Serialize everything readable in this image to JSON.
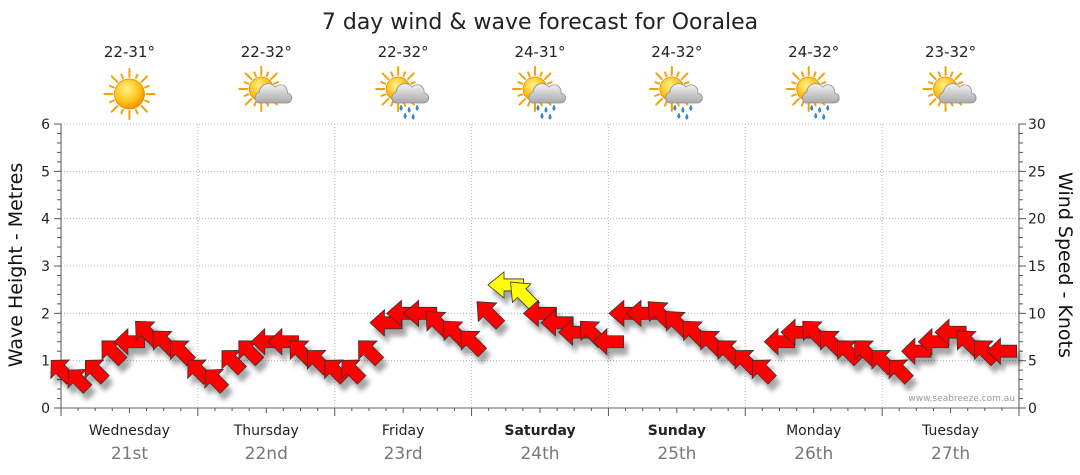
{
  "chart_data": {
    "type": "wind-arrows",
    "title": "7 day wind & wave forecast for Ooralea",
    "ylabel_left": "Wave Height - Metres",
    "ylabel_right": "Wind Speed - Knots",
    "ylim_left": [
      0,
      6
    ],
    "ylim_right": [
      0,
      30
    ],
    "yticks_left": [
      "0",
      "1",
      "2",
      "3",
      "4",
      "5",
      "6"
    ],
    "yticks_right": [
      "0",
      "5",
      "10",
      "15",
      "20",
      "25",
      "30"
    ],
    "grid": true,
    "days": [
      {
        "day": "Wednesday",
        "date": "21st",
        "temp": "22-31°",
        "weather": "sunny",
        "bold": false
      },
      {
        "day": "Thursday",
        "date": "22nd",
        "temp": "22-32°",
        "weather": "partly-cloudy",
        "bold": false
      },
      {
        "day": "Friday",
        "date": "23rd",
        "temp": "22-32°",
        "weather": "showers",
        "bold": false
      },
      {
        "day": "Saturday",
        "date": "24th",
        "temp": "24-31°",
        "weather": "showers",
        "bold": true
      },
      {
        "day": "Sunday",
        "date": "25th",
        "temp": "24-32°",
        "weather": "showers",
        "bold": true
      },
      {
        "day": "Monday",
        "date": "26th",
        "temp": "24-32°",
        "weather": "showers",
        "bold": false
      },
      {
        "day": "Tuesday",
        "date": "27th",
        "temp": "23-32°",
        "weather": "partly-cloudy",
        "bold": false
      }
    ],
    "wind_series": {
      "name": "Wind",
      "units": "knots",
      "t_hours": [
        0,
        3,
        6,
        9,
        12,
        15,
        18,
        21,
        24,
        27,
        30,
        33,
        36,
        39,
        42,
        45,
        48,
        51,
        54,
        57,
        60,
        63,
        66,
        69,
        72,
        75,
        78,
        81,
        84,
        87,
        90,
        93,
        96,
        99,
        102,
        105,
        108,
        111,
        114,
        117,
        120,
        123,
        126,
        129,
        132,
        135,
        138,
        141,
        144,
        147,
        150,
        153,
        156,
        159,
        162,
        165
      ],
      "speed": [
        4,
        3,
        4,
        6,
        7,
        8,
        7,
        6,
        4,
        3,
        5,
        6,
        7,
        7,
        6,
        5,
        4,
        4,
        6,
        9,
        10,
        10,
        9,
        8,
        7,
        10,
        13,
        12,
        10,
        9,
        8,
        8,
        7,
        10,
        10,
        10,
        9,
        8,
        7,
        6,
        5,
        4,
        7,
        8,
        8,
        7,
        6,
        6,
        5,
        4,
        6,
        7,
        8,
        7,
        6,
        6
      ],
      "direction": [
        "SE",
        "SE",
        "SE",
        "SE",
        "E",
        "SE",
        "SE",
        "SE",
        "SE",
        "SE",
        "SE",
        "SE",
        "E",
        "E",
        "SE",
        "SE",
        "SE",
        "SE",
        "SE",
        "E",
        "E",
        "E",
        "SE",
        "SE",
        "SE",
        "SE",
        "E",
        "SE",
        "E",
        "E",
        "E",
        "SE",
        "E",
        "E",
        "E",
        "SE",
        "SE",
        "SE",
        "SE",
        "SE",
        "SE",
        "SE",
        "E",
        "E",
        "SE",
        "SE",
        "SE",
        "SE",
        "SE",
        "SE",
        "E",
        "E",
        "E",
        "SE",
        "SE",
        "E"
      ]
    },
    "colors": {
      "wind": "#ff0000",
      "wind_strong": "#ffff00"
    },
    "watermark": "www.seabreeze.com.au"
  }
}
